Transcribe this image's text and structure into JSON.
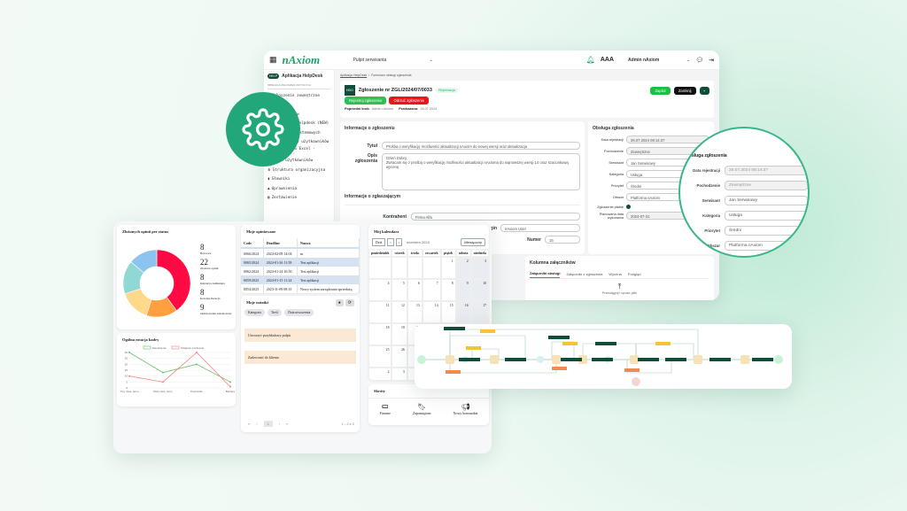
{
  "app": {
    "logo": "nAxiom",
    "dashboard_select": "Pulpit serwisanta",
    "font_size_label": "AAA",
    "user": "Admin nAxiom",
    "notification_count": "0"
  },
  "sidebar": {
    "app_badge": "HELP",
    "app_name": "Aplikacja HelpDesk",
    "section": "OBSŁUGA ZGŁOSZEŃ ZWYKŁYCH",
    "items": [
      {
        "label": "Zgłoszenie zewnętrzne",
        "icon": "document-icon"
      },
      {
        "label": "Raport",
        "icon": "chart-icon"
      },
      {
        "label": "Kontrahentów",
        "icon": "users-icon"
      },
      {
        "label": "Zgłoszenia helpdesk (NEW)",
        "icon": "folder-icon"
      },
      {
        "label": "Uprawnień systemowych",
        "icon": "key-icon"
      },
      {
        "label": "Import listy użytkowników",
        "icon": "list-icon"
      },
      {
        "label": "Import z MS Excel - mapowan...",
        "icon": "excel-icon"
      },
      {
        "label": "Lista użytkowników",
        "icon": "eye-icon"
      },
      {
        "label": "Struktura organizacyjna",
        "icon": "org-icon"
      },
      {
        "label": "Słowniki",
        "icon": "book-icon"
      },
      {
        "label": "Uprawnienia",
        "icon": "people-icon"
      },
      {
        "label": "Zestawienie",
        "icon": "table-icon"
      }
    ]
  },
  "breadcrumb": [
    "Aplikacja HelpDesk",
    "Formularz obsługi zgłoszenia"
  ],
  "ticket": {
    "badge": "HDO",
    "title": "Zgłoszenie nr ZGL/2024/07/0033",
    "status": "Rejestracja",
    "register_btn": "Rejestruj zgłoszenie",
    "reject_btn": "Odrzuć zgłoszenie",
    "prev_step_label": "Poprzedni krok:",
    "prev_step": "Admin nAxiom",
    "forwarded_label": "Przekazano:",
    "forwarded": "26.07.2024",
    "save": "Zapisz",
    "close": "Zamknij"
  },
  "info": {
    "header": "Informacje o zgłoszeniu",
    "title_label": "Tytuł",
    "title_value": "Prośba o weryfikację możliwości aktualizacji nAxiom do nowej wersji oraz aktualizacja",
    "desc_label": "Opis zgłoszenia",
    "desc_lines": [
      "Dzień Dobry,",
      "Zwracam się z prośbą o weryfikację możliwości aktualizacji nAxioma do najnowszej wersji 14 oraz szacunkową wycenę."
    ],
    "reporter_header": "Informacje o zgłaszającym",
    "contractor_label": "Kontrahent",
    "contractor_value": "Firma Alfa",
    "login_label": "Login",
    "login_value": "nAxiom User",
    "phone_label": "Numer",
    "phone_value": "15"
  },
  "handling": {
    "header": "Obsługa zgłoszenia",
    "fields": [
      {
        "label": "Data rejestracji",
        "value": "26.07.2024 08:14:37"
      },
      {
        "label": "Pochodzenie",
        "value": "Zewnętrzne"
      },
      {
        "label": "Serwisant",
        "value": "Jan Serwisowy"
      },
      {
        "label": "Kategoria",
        "value": "Usługa"
      },
      {
        "label": "Priorytet",
        "value": "Średni"
      },
      {
        "label": "Obszar",
        "value": "Platforma nAxiom"
      }
    ],
    "paid_label": "Zgłoszenie płatne",
    "planned_label": "Planowana data wykonania",
    "planned_value": "2024-07-31"
  },
  "attachments": {
    "header": "Kolumna załączników",
    "tabs": [
      "Załączniki obsługi",
      "Załączniki z zgłoszenia",
      "Wycena",
      "Podgląd"
    ],
    "drop": "Przeciągnij i upuść pliki"
  },
  "dashboard": {
    "donut": {
      "title": "Złożonych opinii per status",
      "stats": [
        {
          "value": "8",
          "label": "Robocze"
        },
        {
          "value": "22",
          "label": "Złożone opinii"
        },
        {
          "value": "8",
          "label": "Instancja zamknięta"
        },
        {
          "value": "8",
          "label": "Kolejna Iteracja"
        },
        {
          "value": "9",
          "label": "Opiniowanie zakończone"
        }
      ]
    },
    "opinions": {
      "title": "Moje opiniowane",
      "columns": [
        "Code",
        "Deadline",
        "Nazwa"
      ],
      "rows": [
        [
          "0066/2024",
          "2024-02-08 14:04",
          "m"
        ],
        [
          "0065/2024",
          "2024-01-26 11:58",
          "Test aplikacji"
        ],
        [
          "0062/2024",
          "2024-01-24 16:50",
          "Test aplikacji"
        ],
        [
          "0059/2023",
          "2024-01-15 11:24",
          "Test aplikacji"
        ],
        [
          "0054/2023",
          "2023-11-09 08:35",
          "Nowy system zarządzania sprzedażą"
        ]
      ]
    },
    "notes": {
      "title": "Moje notatki",
      "filters": [
        "Kategoria",
        "Treść",
        "Data utworzenia"
      ],
      "items": [
        "Utworzyć przykładowy pulpit",
        "Zadzwonić do klienta"
      ],
      "page": "1",
      "range": "1 - 2 z 2"
    },
    "calendar": {
      "title": "Mój kalendarz",
      "today": "Dziś",
      "month": "wrzesień 2023",
      "view": "Miesięczny",
      "days": [
        "poniedziałek",
        "wtorek",
        "środa",
        "czwartek",
        "piątek",
        "sobota",
        "niedziela"
      ],
      "dates": [
        "",
        "",
        "",
        "",
        "1",
        "2",
        "3",
        "4",
        "5",
        "6",
        "7",
        "8",
        "9",
        "10",
        "11",
        "12",
        "13",
        "14",
        "15",
        "16",
        "17",
        "18",
        "19",
        "20",
        "21",
        "22",
        "23",
        "24",
        "25",
        "26",
        "27",
        "28",
        "29",
        "30",
        "1",
        "2",
        "3",
        "4",
        "5",
        "6",
        "7"
      ]
    },
    "shortcuts": {
      "title": "Skróty",
      "items": [
        {
          "label": "Finanse",
          "icon": "money-icon"
        },
        {
          "label": "Zapamiętane",
          "icon": "bookmark-icon"
        },
        {
          "label": "Nowy komunikat",
          "icon": "megaphone-icon"
        }
      ]
    },
    "staff_chart": {
      "title": "Ogólna rotacja kadry"
    }
  },
  "chart_data": [
    {
      "type": "pie",
      "title": "Złożonych opinii per status",
      "categories": [
        "Czerwony",
        "Pomarańczowy",
        "Żółty",
        "Turkusowy",
        "Niebieski"
      ],
      "values": [
        40,
        15,
        15,
        16,
        14
      ],
      "colors": [
        "#ff0a43",
        "#ff9f3f",
        "#ffd98a",
        "#8fd8d4",
        "#8cc4f0"
      ]
    },
    {
      "type": "line",
      "title": "Ogólna rotacja kadry",
      "categories": [
        "Trzy mies. temu",
        "Dwa mies. temu",
        "Poprzedni",
        "Bieżący"
      ],
      "ylim": [
        0,
        30
      ],
      "yticks": [
        0,
        5,
        10,
        15,
        20,
        25,
        30
      ],
      "series": [
        {
          "name": "Zatrudnienia",
          "values": [
            30,
            13,
            20,
            5
          ],
          "color": "#6cc06c"
        },
        {
          "name": "Odejścia i zwolnienia",
          "values": [
            10,
            5,
            30,
            1
          ],
          "color": "#ff7b7b"
        }
      ]
    }
  ]
}
